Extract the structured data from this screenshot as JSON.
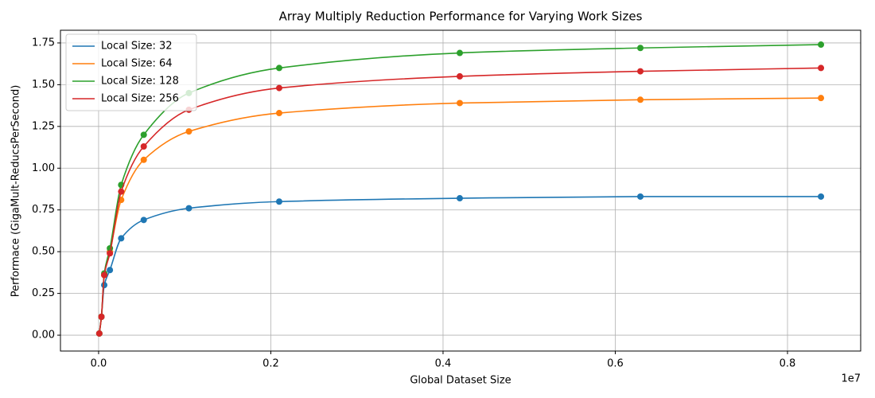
{
  "chart_data": {
    "type": "line",
    "title": "Array Multiply Reduction Performance for Varying Work Sizes",
    "x_label": "Global Dataset Size",
    "y_label": "Performace (GigaMult-ReducsPerSecond)",
    "x_offset_label": "1e7",
    "x": [
      8192,
      32768,
      65536,
      131072,
      262144,
      524288,
      1048576,
      2097152,
      4194304,
      6291456,
      8388608
    ],
    "series": [
      {
        "name": "Local Size: 32",
        "color": "#1f77b4",
        "values": [
          0.01,
          0.11,
          0.3,
          0.39,
          0.58,
          0.69,
          0.76,
          0.8,
          0.82,
          0.83,
          0.83
        ]
      },
      {
        "name": "Local Size: 64",
        "color": "#ff7f0e",
        "values": [
          0.01,
          0.11,
          0.36,
          0.5,
          0.81,
          1.05,
          1.22,
          1.33,
          1.39,
          1.41,
          1.42
        ]
      },
      {
        "name": "Local Size: 128",
        "color": "#2ca02c",
        "values": [
          0.01,
          0.11,
          0.37,
          0.52,
          0.9,
          1.2,
          1.45,
          1.6,
          1.69,
          1.72,
          1.74
        ]
      },
      {
        "name": "Local Size: 256",
        "color": "#d62728",
        "values": [
          0.01,
          0.11,
          0.36,
          0.49,
          0.86,
          1.13,
          1.35,
          1.48,
          1.55,
          1.58,
          1.6
        ]
      }
    ],
    "xlim": [
      -443000,
      8850000
    ],
    "xticks": [
      {
        "value": 0,
        "label": "0.0"
      },
      {
        "value": 2000000,
        "label": "0.2"
      },
      {
        "value": 4000000,
        "label": "0.4"
      },
      {
        "value": 6000000,
        "label": "0.6"
      },
      {
        "value": 8000000,
        "label": "0.8"
      }
    ],
    "ylim": [
      -0.095,
      1.826
    ],
    "yticks": [
      {
        "value": 0,
        "label": "0.00"
      },
      {
        "value": 0.25,
        "label": "0.25"
      },
      {
        "value": 0.5,
        "label": "0.50"
      },
      {
        "value": 0.75,
        "label": "0.75"
      },
      {
        "value": 1,
        "label": "1.00"
      },
      {
        "value": 1.25,
        "label": "1.25"
      },
      {
        "value": 1.5,
        "label": "1.50"
      },
      {
        "value": 1.75,
        "label": "1.75"
      }
    ],
    "grid": true,
    "legend": "upper left",
    "markers": true
  }
}
